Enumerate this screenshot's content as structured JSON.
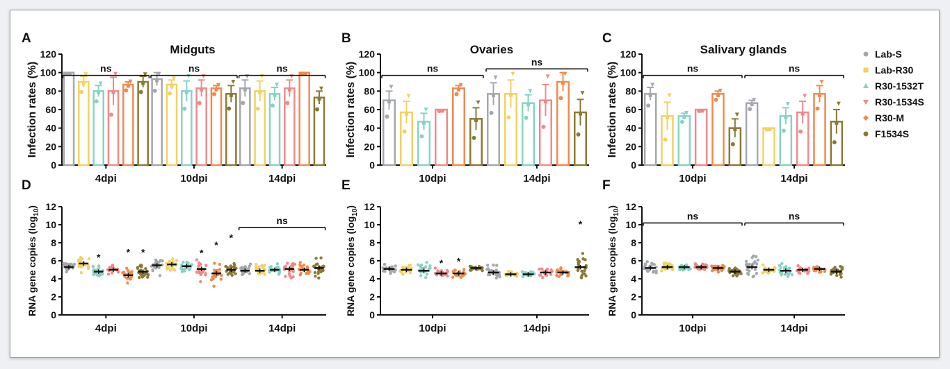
{
  "colors": {
    "Lab-S": "#a4a8ad",
    "Lab-R30": "#f2d261",
    "R30-1532T": "#86d3c6",
    "R30-1534S": "#f08a8a",
    "R30-M": "#ee8b4f",
    "F1534S": "#8a7a35"
  },
  "legend": [
    "Lab-S",
    "Lab-R30",
    "R30-1532T",
    "R30-1534S",
    "R30-M",
    "F1534S"
  ],
  "chart_data": [
    {
      "panel": "A",
      "type": "bar",
      "title": "Midguts",
      "ylabel": "Infection rates (%)",
      "ylim": [
        0,
        120
      ],
      "yticks": [
        0,
        20,
        40,
        60,
        80,
        100,
        120
      ],
      "categories": [
        "4dpi",
        "10dpi",
        "14dpi"
      ],
      "series": [
        {
          "name": "Lab-S",
          "values": [
            100,
            93,
            83
          ],
          "errors": [
            0,
            7,
            9
          ]
        },
        {
          "name": "Lab-R30",
          "values": [
            90,
            87,
            80
          ],
          "errors": [
            6,
            5,
            11
          ]
        },
        {
          "name": "R30-1532T",
          "values": [
            80,
            80,
            77
          ],
          "errors": [
            6,
            11,
            7
          ]
        },
        {
          "name": "R30-1534S",
          "values": [
            80,
            83,
            83
          ],
          "errors": [
            15,
            9,
            9
          ]
        },
        {
          "name": "R30-M",
          "values": [
            87,
            83,
            100
          ],
          "errors": [
            3,
            3,
            0
          ]
        },
        {
          "name": "F1534S",
          "values": [
            90,
            77,
            73
          ],
          "errors": [
            6,
            9,
            7
          ]
        }
      ],
      "annotations": [
        {
          "text": "ns",
          "from": "4dpi",
          "to": "4dpi",
          "level": 97
        },
        {
          "text": "ns",
          "from": "10dpi",
          "to": "10dpi",
          "level": 97
        },
        {
          "text": "ns",
          "from": "14dpi",
          "to": "14dpi",
          "level": 97
        }
      ]
    },
    {
      "panel": "B",
      "type": "bar",
      "title": "Ovaries",
      "ylabel": "Infection rates (%)",
      "ylim": [
        0,
        120
      ],
      "yticks": [
        0,
        20,
        40,
        60,
        80,
        100,
        120
      ],
      "categories": [
        "10dpi",
        "14dpi"
      ],
      "series": [
        {
          "name": "Lab-S",
          "values": [
            70,
            77
          ],
          "errors": [
            10,
            12
          ]
        },
        {
          "name": "Lab-R30",
          "values": [
            57,
            77
          ],
          "errors": [
            12,
            15
          ]
        },
        {
          "name": "R30-1532T",
          "values": [
            47,
            67
          ],
          "errors": [
            9,
            9
          ]
        },
        {
          "name": "R30-1534S",
          "values": [
            60,
            70
          ],
          "errors": [
            0,
            17
          ]
        },
        {
          "name": "R30-M",
          "values": [
            83,
            90
          ],
          "errors": [
            3,
            10
          ]
        },
        {
          "name": "F1534S",
          "values": [
            50,
            57
          ],
          "errors": [
            12,
            14
          ]
        }
      ],
      "annotations": [
        {
          "text": "ns",
          "from": "10dpi",
          "to": "10dpi",
          "level": 97
        },
        {
          "text": "ns",
          "from": "14dpi",
          "to": "14dpi",
          "level": 104
        }
      ]
    },
    {
      "panel": "C",
      "type": "bar",
      "title": "Salivary glands",
      "ylabel": "Infection rates (%)",
      "ylim": [
        0,
        120
      ],
      "yticks": [
        0,
        20,
        40,
        60,
        80,
        100,
        120
      ],
      "categories": [
        "10dpi",
        "14dpi"
      ],
      "series": [
        {
          "name": "Lab-S",
          "values": [
            77,
            67
          ],
          "errors": [
            7,
            3
          ]
        },
        {
          "name": "Lab-R30",
          "values": [
            53,
            40
          ],
          "errors": [
            15,
            0
          ]
        },
        {
          "name": "R30-1532T",
          "values": [
            53,
            53
          ],
          "errors": [
            3,
            9
          ]
        },
        {
          "name": "R30-1534S",
          "values": [
            60,
            57
          ],
          "errors": [
            0,
            12
          ]
        },
        {
          "name": "R30-M",
          "values": [
            77,
            77
          ],
          "errors": [
            3,
            9
          ]
        },
        {
          "name": "F1534S",
          "values": [
            40,
            47
          ],
          "errors": [
            10,
            13
          ]
        }
      ],
      "annotations": [
        {
          "text": "ns",
          "from": "10dpi",
          "to": "10dpi",
          "level": 97
        },
        {
          "text": "ns",
          "from": "14dpi",
          "to": "14dpi",
          "level": 97
        }
      ]
    },
    {
      "panel": "D",
      "type": "scatter",
      "ylabel": "RNA gene copies (log",
      "ylabel_sub": "10",
      "ylabel_end": ")",
      "ylim": [
        0,
        12
      ],
      "yticks": [
        0,
        2,
        4,
        6,
        8,
        10,
        12
      ],
      "categories": [
        "4dpi",
        "10dpi",
        "14dpi"
      ],
      "series": [
        {
          "name": "Lab-S",
          "means": [
            5.3,
            5.5,
            4.9
          ],
          "sd": [
            0.6,
            0.8,
            0.6
          ],
          "n": 22
        },
        {
          "name": "Lab-R30",
          "means": [
            5.7,
            5.6,
            4.9
          ],
          "sd": [
            0.8,
            0.8,
            0.7
          ],
          "n": 22
        },
        {
          "name": "R30-1532T",
          "means": [
            4.8,
            5.4,
            5.0
          ],
          "sd": [
            0.5,
            0.5,
            0.5
          ],
          "n": 22
        },
        {
          "name": "R30-1534S",
          "means": [
            5.0,
            5.1,
            5.1
          ],
          "sd": [
            0.5,
            0.9,
            0.9
          ],
          "n": 22
        },
        {
          "name": "R30-M",
          "means": [
            4.4,
            4.6,
            5.0
          ],
          "sd": [
            0.7,
            1.0,
            0.9
          ],
          "n": 22
        },
        {
          "name": "F1534S",
          "means": [
            4.8,
            5.0,
            5.2
          ],
          "sd": [
            0.8,
            0.6,
            1.1
          ],
          "n": 22
        }
      ],
      "stars": [
        {
          "category": "4dpi",
          "series": "R30-1532T",
          "y": 6.6
        },
        {
          "category": "4dpi",
          "series": "R30-M",
          "y": 7.2
        },
        {
          "category": "4dpi",
          "series": "F1534S",
          "y": 7.2
        },
        {
          "category": "10dpi",
          "series": "R30-1534S",
          "y": 7.1
        },
        {
          "category": "10dpi",
          "series": "R30-M",
          "y": 8.0
        },
        {
          "category": "10dpi",
          "series": "F1534S",
          "y": 8.8
        }
      ],
      "annotations": [
        {
          "text": "ns",
          "from": "14dpi",
          "to": "14dpi",
          "level": 9.7
        }
      ]
    },
    {
      "panel": "E",
      "type": "scatter",
      "ylabel": "RNA gene copies (log",
      "ylabel_sub": "10",
      "ylabel_end": ")",
      "ylim": [
        0,
        12
      ],
      "yticks": [
        0,
        2,
        4,
        6,
        8,
        10,
        12
      ],
      "categories": [
        "10dpi",
        "14dpi"
      ],
      "series": [
        {
          "name": "Lab-S",
          "means": [
            5.1,
            4.7
          ],
          "sd": [
            0.4,
            0.7
          ],
          "n": 22
        },
        {
          "name": "Lab-R30",
          "means": [
            5.0,
            4.5
          ],
          "sd": [
            0.5,
            0.5
          ],
          "n": 22
        },
        {
          "name": "R30-1532T",
          "means": [
            4.9,
            4.5
          ],
          "sd": [
            0.7,
            0.3
          ],
          "n": 22
        },
        {
          "name": "R30-1534S",
          "means": [
            4.6,
            4.7
          ],
          "sd": [
            0.4,
            0.5
          ],
          "n": 22
        },
        {
          "name": "R30-M",
          "means": [
            4.6,
            4.7
          ],
          "sd": [
            0.5,
            0.5
          ],
          "n": 22
        },
        {
          "name": "F1534S",
          "means": [
            5.2,
            5.3
          ],
          "sd": [
            0.3,
            1.2
          ],
          "n": 22
        }
      ],
      "stars": [
        {
          "category": "10dpi",
          "series": "R30-1534S",
          "y": 6.0
        },
        {
          "category": "10dpi",
          "series": "R30-M",
          "y": 6.2
        },
        {
          "category": "14dpi",
          "series": "F1534S",
          "y": 10.3
        }
      ],
      "annotations": []
    },
    {
      "panel": "F",
      "type": "scatter",
      "ylabel": "RNA gene copies (log",
      "ylabel_sub": "10",
      "ylabel_end": ")",
      "ylim": [
        0,
        12
      ],
      "yticks": [
        0,
        2,
        4,
        6,
        8,
        10,
        12
      ],
      "categories": [
        "10dpi",
        "14dpi"
      ],
      "series": [
        {
          "name": "Lab-S",
          "means": [
            5.2,
            5.3
          ],
          "sd": [
            0.7,
            1.0
          ],
          "n": 22
        },
        {
          "name": "Lab-R30",
          "means": [
            5.3,
            5.0
          ],
          "sd": [
            0.5,
            0.5
          ],
          "n": 22
        },
        {
          "name": "R30-1532T",
          "means": [
            5.3,
            4.9
          ],
          "sd": [
            0.3,
            0.5
          ],
          "n": 22
        },
        {
          "name": "R30-1534S",
          "means": [
            5.3,
            5.0
          ],
          "sd": [
            0.3,
            0.3
          ],
          "n": 22
        },
        {
          "name": "R30-M",
          "means": [
            5.2,
            5.1
          ],
          "sd": [
            0.4,
            0.3
          ],
          "n": 22
        },
        {
          "name": "F1534S",
          "means": [
            4.8,
            4.8
          ],
          "sd": [
            0.5,
            0.6
          ],
          "n": 22
        }
      ],
      "stars": [],
      "annotations": [
        {
          "text": "ns",
          "from": "10dpi",
          "to": "10dpi",
          "level": 10.2
        },
        {
          "text": "ns",
          "from": "14dpi",
          "to": "14dpi",
          "level": 10.2
        }
      ]
    }
  ]
}
